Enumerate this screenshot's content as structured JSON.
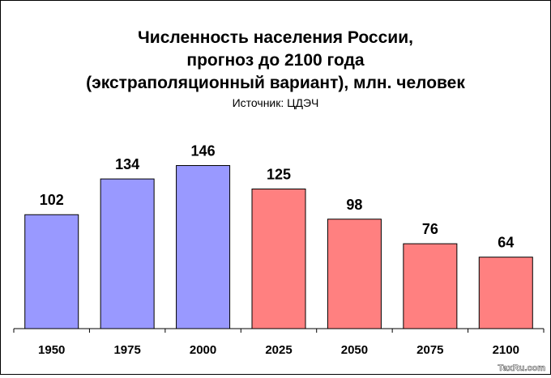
{
  "chart_data": {
    "type": "bar",
    "title_lines": [
      "Численность населения России,",
      "прогноз до 2100 года",
      "(экстраполяционный вариант), млн. человек"
    ],
    "subtitle": "Источник: ЦДЭЧ",
    "categories": [
      "1950",
      "1975",
      "2000",
      "2025",
      "2050",
      "2075",
      "2100"
    ],
    "values": [
      102,
      134,
      146,
      125,
      98,
      76,
      64
    ],
    "data_labels": [
      "102",
      "134",
      "146",
      "125",
      "98",
      "76",
      "64"
    ],
    "bar_colors": [
      "#9999ff",
      "#9999ff",
      "#9999ff",
      "#ff8080",
      "#ff8080",
      "#ff8080",
      "#ff8080"
    ],
    "ylim": [
      0,
      220
    ],
    "grid": false,
    "legend": "none",
    "xlabel": "",
    "ylabel": ""
  },
  "watermark": "TaxRu.com"
}
